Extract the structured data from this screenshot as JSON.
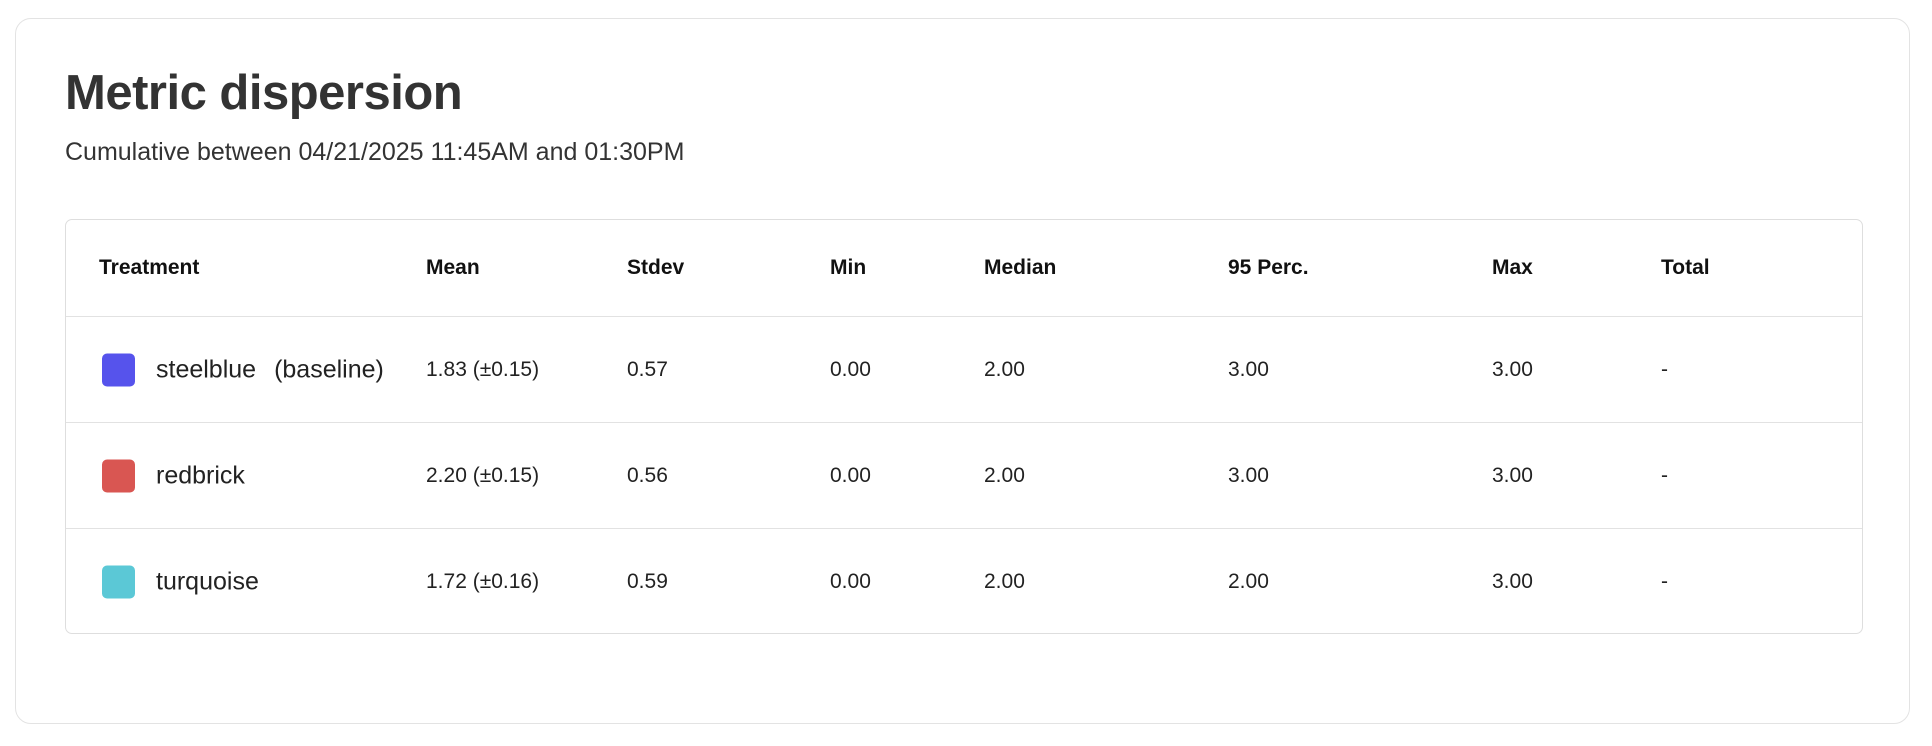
{
  "title": "Metric dispersion",
  "subtitle": "Cumulative between 04/21/2025 11:45AM and 01:30PM",
  "table": {
    "headers": [
      "Treatment",
      "Mean",
      "Stdev",
      "Min",
      "Median",
      "95 Perc.",
      "Max",
      "Total"
    ],
    "rows": [
      {
        "name": "steelblue",
        "suffix": "(baseline)",
        "color": "#5653EC",
        "mean": "1.83 (±0.15)",
        "stdev": "0.57",
        "min": "0.00",
        "median": "2.00",
        "p95": "3.00",
        "max": "3.00",
        "total": "-"
      },
      {
        "name": "redbrick",
        "suffix": "",
        "color": "#D95652",
        "mean": "2.20 (±0.15)",
        "stdev": "0.56",
        "min": "0.00",
        "median": "2.00",
        "p95": "3.00",
        "max": "3.00",
        "total": "-"
      },
      {
        "name": "turquoise",
        "suffix": "",
        "color": "#5BC8D6",
        "mean": "1.72 (±0.16)",
        "stdev": "0.59",
        "min": "0.00",
        "median": "2.00",
        "p95": "2.00",
        "max": "3.00",
        "total": "-"
      }
    ]
  }
}
